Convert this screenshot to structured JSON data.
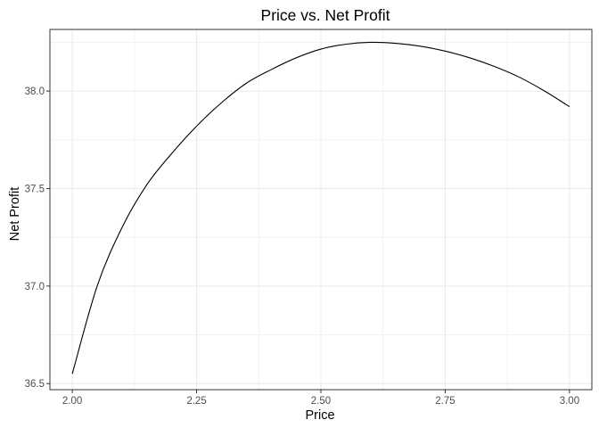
{
  "chart_data": {
    "type": "line",
    "title": "Price vs. Net Profit",
    "xlabel": "Price",
    "ylabel": "Net Profit",
    "xlim": [
      1.955,
      3.045
    ],
    "ylim": [
      36.469,
      38.316
    ],
    "x_ticks": [
      2.0,
      2.25,
      2.5,
      2.75,
      3.0
    ],
    "x_tick_labels": [
      "2.00",
      "2.25",
      "2.50",
      "2.75",
      "3.00"
    ],
    "y_ticks": [
      36.5,
      37.0,
      37.5,
      38.0
    ],
    "y_tick_labels": [
      "36.5",
      "37.0",
      "37.5",
      "38.0"
    ],
    "x_minor": [
      2.125,
      2.375,
      2.625,
      2.875
    ],
    "y_minor": [
      36.75,
      37.25,
      37.75,
      38.25
    ],
    "grid": true,
    "legend": "none",
    "colors": {
      "line": "#000000",
      "grid": "#ebebeb",
      "panel_border": "#333333",
      "tick_label": "#4d4d4d",
      "background": "#ffffff"
    },
    "series": [
      {
        "x": [
          2.0,
          2.05,
          2.1,
          2.15,
          2.2,
          2.25,
          2.3,
          2.35,
          2.4,
          2.45,
          2.5,
          2.55,
          2.6,
          2.65,
          2.7,
          2.75,
          2.8,
          2.85,
          2.9,
          2.95,
          3.0
        ],
        "values": [
          36.55,
          37.0,
          37.3,
          37.52,
          37.68,
          37.82,
          37.94,
          38.04,
          38.11,
          38.17,
          38.215,
          38.24,
          38.25,
          38.245,
          38.23,
          38.205,
          38.17,
          38.125,
          38.07,
          38.0,
          37.92
        ]
      }
    ]
  }
}
